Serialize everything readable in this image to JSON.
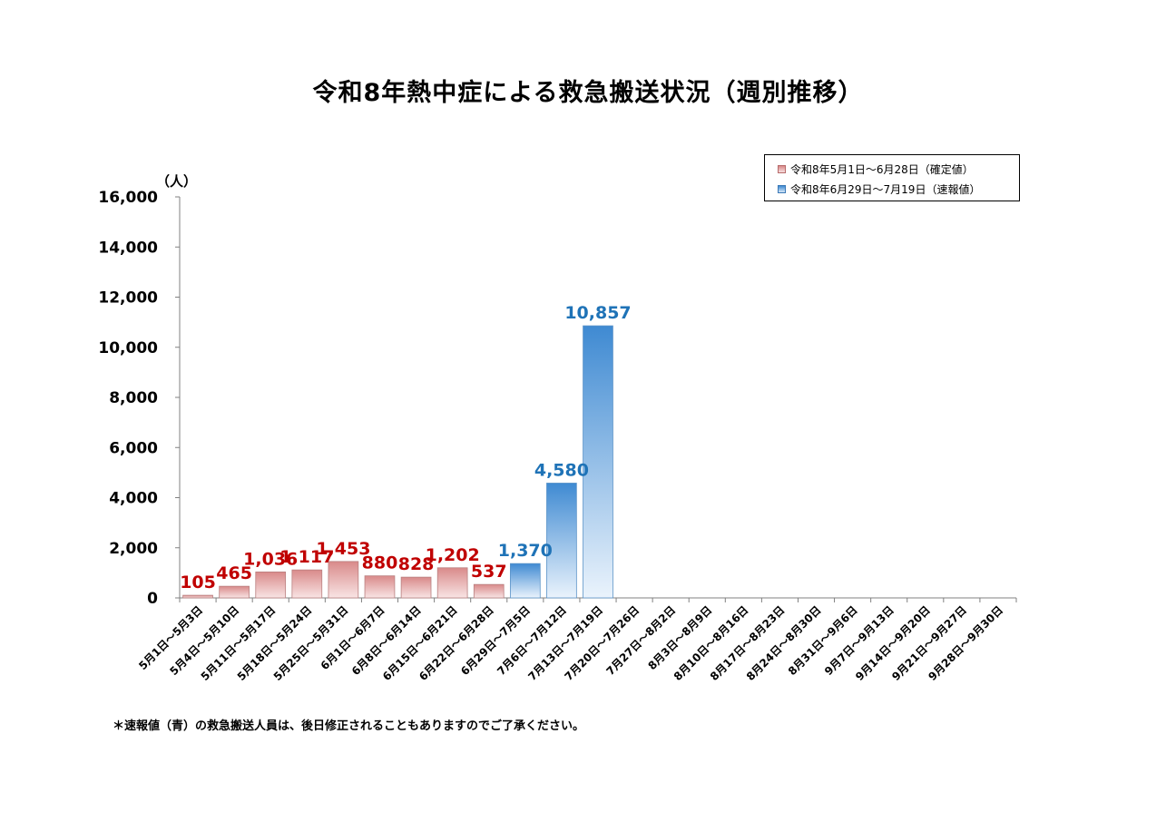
{
  "chart_data": {
    "type": "bar",
    "title": "令和8年熱中症による救急搬送状況（週別推移）",
    "ylabel": "（人）",
    "xlabel": "",
    "ylim": [
      0,
      16000
    ],
    "yticks": [
      0,
      2000,
      4000,
      6000,
      8000,
      10000,
      12000,
      14000,
      16000
    ],
    "ytick_labels": [
      "0",
      "2,000",
      "4,000",
      "6,000",
      "8,000",
      "10,000",
      "12,000",
      "14,000",
      "16,000"
    ],
    "categories": [
      "5月1日～5月3日",
      "5月4日～5月10日",
      "5月11日～5月17日",
      "5月18日～5月24日",
      "5月25日～5月31日",
      "6月1日～6月7日",
      "6月8日～6月14日",
      "6月15日～6月21日",
      "6月22日～6月28日",
      "6月29日～7月5日",
      "7月6日～7月12日",
      "7月13日～7月19日",
      "7月20日～7月26日",
      "7月27日～8月2日",
      "8月3日～8月9日",
      "8月10日～8月16日",
      "8月17日～8月23日",
      "8月24日～8月30日",
      "8月31日～9月6日",
      "9月7日～9月13日",
      "9月14日～9月20日",
      "9月21日～9月27日",
      "9月28日～9月30日"
    ],
    "series": [
      {
        "name": "令和8年5月1日～6月28日（確定値）",
        "color": "#c00000",
        "fill_top": "#d98a8a",
        "fill_bottom": "#f8e4e4",
        "values": [
          105,
          465,
          1036,
          1117,
          1453,
          880,
          828,
          1202,
          537,
          null,
          null,
          null,
          null,
          null,
          null,
          null,
          null,
          null,
          null,
          null,
          null,
          null,
          null
        ],
        "labels": [
          "105",
          "465",
          "1,036",
          "1,117",
          "1,453",
          "880",
          "828",
          "1,202",
          "537"
        ]
      },
      {
        "name": "令和8年6月29日～7月19日（速報値）",
        "color": "#1f73b7",
        "fill_top": "#3f8ad2",
        "fill_bottom": "#eaf3fc",
        "values": [
          null,
          null,
          null,
          null,
          null,
          null,
          null,
          null,
          null,
          1370,
          4580,
          10857,
          null,
          null,
          null,
          null,
          null,
          null,
          null,
          null,
          null,
          null,
          null
        ],
        "labels": [
          "1,370",
          "4,580",
          "10,857"
        ]
      }
    ],
    "legend_position": "top-right",
    "grid": false
  },
  "footnote": "＊速報値（青）の救急搬送人員は、後日修正されることもありますのでご了承ください。"
}
